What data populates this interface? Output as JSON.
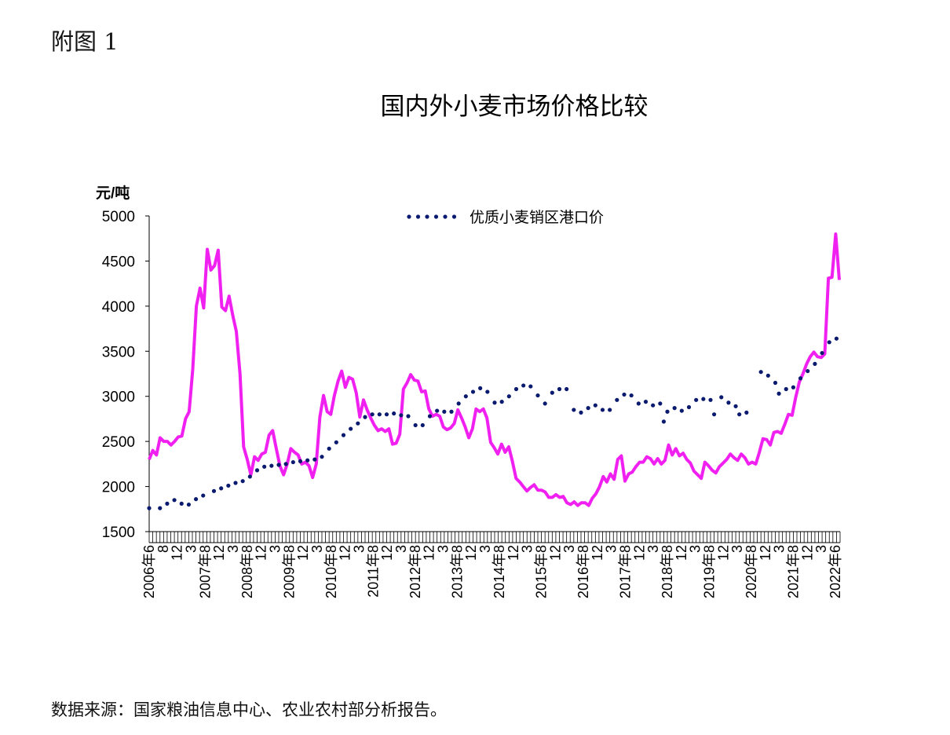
{
  "figure_label": "附图 1",
  "source_note": "数据来源：国家粮油信息中心、农业农村部分析报告。",
  "chart_data": {
    "type": "line",
    "title": "国内外小麦市场价格比较",
    "ylabel": "元/吨",
    "xlabel": "",
    "ylim": [
      1500,
      5000
    ],
    "yticks": [
      1500,
      2000,
      2500,
      3000,
      3500,
      4000,
      4500,
      5000
    ],
    "xrange": [
      "2006-06",
      "2022-06"
    ],
    "x_tick_labels": [
      "2006年6",
      "8",
      "12",
      "3",
      "2007年8",
      "12",
      "3",
      "2008年8",
      "12",
      "3",
      "2009年8",
      "12",
      "3",
      "2010年8",
      "12",
      "3",
      "2011年8",
      "12",
      "3",
      "2012年8",
      "12",
      "3",
      "2013年8",
      "12",
      "3",
      "2014年8",
      "12",
      "3",
      "2015年8",
      "12",
      "3",
      "2016年8",
      "12",
      "3",
      "2017年8",
      "12",
      "3",
      "2018年8",
      "12",
      "3",
      "2019年8",
      "12",
      "3",
      "2020年8",
      "12",
      "3",
      "2021年8",
      "12",
      "3",
      "2022年6"
    ],
    "grid": false,
    "legend": "top-center",
    "series": [
      {
        "name": "优质小麦销区港口价",
        "style": "dotted",
        "color": "#0a1a6e",
        "points": [
          [
            "2006-06",
            1760
          ],
          [
            "2006-09",
            1760
          ],
          [
            "2006-11",
            1810
          ],
          [
            "2007-01",
            1850
          ],
          [
            "2007-03",
            1810
          ],
          [
            "2007-05",
            1800
          ],
          [
            "2007-07",
            1860
          ],
          [
            "2007-09",
            1900
          ],
          [
            "2007-12",
            1950
          ],
          [
            "2008-02",
            1980
          ],
          [
            "2008-04",
            2010
          ],
          [
            "2008-06",
            2040
          ],
          [
            "2008-08",
            2060
          ],
          [
            "2008-10",
            2110
          ],
          [
            "2008-12",
            2180
          ],
          [
            "2009-02",
            2220
          ],
          [
            "2009-04",
            2230
          ],
          [
            "2009-06",
            2240
          ],
          [
            "2009-08",
            2250
          ],
          [
            "2009-10",
            2270
          ],
          [
            "2009-12",
            2280
          ],
          [
            "2010-02",
            2290
          ],
          [
            "2010-04",
            2300
          ],
          [
            "2010-06",
            2330
          ],
          [
            "2010-08",
            2420
          ],
          [
            "2010-10",
            2490
          ],
          [
            "2010-12",
            2570
          ],
          [
            "2011-02",
            2640
          ],
          [
            "2011-04",
            2700
          ],
          [
            "2011-06",
            2770
          ],
          [
            "2011-08",
            2800
          ],
          [
            "2011-10",
            2800
          ],
          [
            "2011-12",
            2800
          ],
          [
            "2012-02",
            2810
          ],
          [
            "2012-04",
            2790
          ],
          [
            "2012-06",
            2780
          ],
          [
            "2012-08",
            2680
          ],
          [
            "2012-10",
            2680
          ],
          [
            "2012-12",
            2780
          ],
          [
            "2013-02",
            2840
          ],
          [
            "2013-04",
            2830
          ],
          [
            "2013-06",
            2830
          ],
          [
            "2013-08",
            2920
          ],
          [
            "2013-10",
            3000
          ],
          [
            "2013-12",
            3050
          ],
          [
            "2014-02",
            3090
          ],
          [
            "2014-04",
            3050
          ],
          [
            "2014-06",
            2930
          ],
          [
            "2014-08",
            2940
          ],
          [
            "2014-10",
            3000
          ],
          [
            "2014-12",
            3080
          ],
          [
            "2015-02",
            3120
          ],
          [
            "2015-04",
            3110
          ],
          [
            "2015-06",
            3010
          ],
          [
            "2015-08",
            2920
          ],
          [
            "2015-10",
            3040
          ],
          [
            "2015-12",
            3080
          ],
          [
            "2016-02",
            3080
          ],
          [
            "2016-04",
            2850
          ],
          [
            "2016-06",
            2820
          ],
          [
            "2016-08",
            2870
          ],
          [
            "2016-10",
            2900
          ],
          [
            "2016-12",
            2850
          ],
          [
            "2017-02",
            2850
          ],
          [
            "2017-04",
            2960
          ],
          [
            "2017-06",
            3020
          ],
          [
            "2017-08",
            3010
          ],
          [
            "2017-10",
            2920
          ],
          [
            "2017-12",
            2940
          ],
          [
            "2018-02",
            2900
          ],
          [
            "2018-04",
            2920
          ],
          [
            "2018-05",
            2720
          ],
          [
            "2018-06",
            2830
          ],
          [
            "2018-08",
            2870
          ],
          [
            "2018-10",
            2840
          ],
          [
            "2018-12",
            2880
          ],
          [
            "2019-02",
            2960
          ],
          [
            "2019-04",
            2970
          ],
          [
            "2019-06",
            2960
          ],
          [
            "2019-07",
            2800
          ],
          [
            "2019-09",
            2990
          ],
          [
            "2019-11",
            2930
          ],
          [
            "2020-01",
            2890
          ],
          [
            "2020-02",
            2800
          ],
          [
            "2020-04",
            2820
          ],
          [
            "2020-08",
            3270
          ],
          [
            "2020-10",
            3230
          ],
          [
            "2020-12",
            3150
          ],
          [
            "2021-01",
            3030
          ],
          [
            "2021-03",
            3080
          ],
          [
            "2021-05",
            3100
          ],
          [
            "2021-07",
            3200
          ],
          [
            "2021-09",
            3280
          ],
          [
            "2021-11",
            3360
          ],
          [
            "2022-01",
            3480
          ],
          [
            "2022-03",
            3600
          ],
          [
            "2022-05",
            3640
          ]
        ]
      },
      {
        "style": "solid",
        "color": "#f020f0",
        "values": [
          2300,
          2400,
          2350,
          2540,
          2500,
          2500,
          2460,
          2500,
          2550,
          2560,
          2750,
          2830,
          3300,
          4000,
          4200,
          3980,
          4630,
          4400,
          4450,
          4620,
          3990,
          3950,
          4110,
          3900,
          3720,
          3250,
          2440,
          2300,
          2130,
          2330,
          2290,
          2360,
          2380,
          2570,
          2620,
          2420,
          2230,
          2130,
          2250,
          2420,
          2380,
          2350,
          2250,
          2270,
          2230,
          2100,
          2250,
          2770,
          3010,
          2830,
          2800,
          3010,
          3170,
          3280,
          3100,
          3210,
          3190,
          3040,
          2770,
          2960,
          2850,
          2760,
          2680,
          2620,
          2640,
          2610,
          2640,
          2470,
          2480,
          2580,
          3080,
          3150,
          3240,
          3180,
          3170,
          3050,
          3060,
          2860,
          2780,
          2800,
          2780,
          2660,
          2630,
          2650,
          2700,
          2850,
          2760,
          2660,
          2540,
          2640,
          2860,
          2830,
          2860,
          2760,
          2490,
          2430,
          2360,
          2470,
          2380,
          2440,
          2280,
          2090,
          2050,
          2000,
          1950,
          1990,
          2020,
          1960,
          1960,
          1940,
          1880,
          1880,
          1910,
          1880,
          1890,
          1820,
          1800,
          1830,
          1790,
          1820,
          1820,
          1790,
          1870,
          1920,
          2000,
          2110,
          2050,
          2140,
          2080,
          2300,
          2340,
          2060,
          2140,
          2160,
          2220,
          2270,
          2270,
          2330,
          2310,
          2250,
          2310,
          2250,
          2290,
          2460,
          2350,
          2420,
          2340,
          2370,
          2300,
          2260,
          2170,
          2130,
          2090,
          2270,
          2230,
          2180,
          2150,
          2220,
          2260,
          2300,
          2360,
          2320,
          2290,
          2360,
          2320,
          2250,
          2270,
          2250,
          2380,
          2530,
          2520,
          2460,
          2600,
          2610,
          2590,
          2690,
          2800,
          2790,
          2990,
          3160,
          3250,
          3360,
          3440,
          3490,
          3440,
          3430,
          3470,
          4310,
          4320,
          4800,
          4290
        ]
      }
    ]
  }
}
